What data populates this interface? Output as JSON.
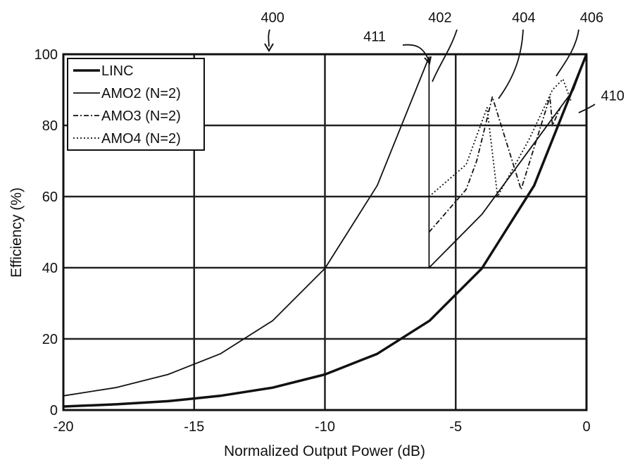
{
  "chart_data": {
    "type": "line",
    "xlabel": "Normalized Output Power (dB)",
    "ylabel": "Efficiency (%)",
    "xlim": [
      -20,
      0
    ],
    "ylim": [
      0,
      100
    ],
    "xticks": [
      "-20",
      "-15",
      "-10",
      "-5",
      "0"
    ],
    "yticks": [
      "0",
      "20",
      "40",
      "60",
      "80",
      "100"
    ],
    "grid": true,
    "legend_position": "top-left",
    "series": [
      {
        "name": "LINC",
        "style": "solid-thick",
        "x": [
          -20,
          -18,
          -16,
          -14,
          -12,
          -10,
          -8,
          -6,
          -4,
          -2,
          0
        ],
        "y": [
          1,
          1.6,
          2.5,
          4,
          6.3,
          10,
          15.8,
          25.1,
          39.8,
          63.1,
          100
        ]
      },
      {
        "name": "AMO2 (N=2)",
        "style": "solid",
        "x": [
          -20,
          -18,
          -16,
          -14,
          -12,
          -10,
          -8,
          -6.02,
          -6.02,
          -4,
          -2,
          -0.5,
          0
        ],
        "y": [
          4,
          6.3,
          10,
          15.8,
          25.1,
          39.8,
          63.1,
          99.2,
          40,
          55,
          75,
          90,
          100
        ]
      },
      {
        "name": "AMO3 (N=2)",
        "style": "dash-dot",
        "x": [
          -6.02,
          -4.6,
          -4.2,
          -3.6,
          -2.5,
          -2.5,
          -1.4,
          -1.3,
          -1.0
        ],
        "y": [
          50,
          62,
          70,
          88,
          62,
          62,
          88,
          80,
          85
        ]
      },
      {
        "name": "AMO4 (N=2)",
        "style": "dotted",
        "x": [
          -6.02,
          -4.6,
          -3.8,
          -3.4,
          -2.2,
          -1.3,
          -0.9,
          -0.6
        ],
        "y": [
          60,
          69,
          85,
          60,
          76,
          90,
          93,
          87
        ]
      }
    ],
    "annotations": [
      {
        "label": "400",
        "x": -12.0,
        "y": 109
      },
      {
        "label": "402",
        "x": -5.6,
        "y": 109
      },
      {
        "label": "404",
        "x": -2.4,
        "y": 109
      },
      {
        "label": "406",
        "x": 0.2,
        "y": 109
      },
      {
        "label": "411",
        "x": -8.1,
        "y": 103.7
      },
      {
        "label": "410",
        "x": 1.0,
        "y": 87
      }
    ]
  }
}
